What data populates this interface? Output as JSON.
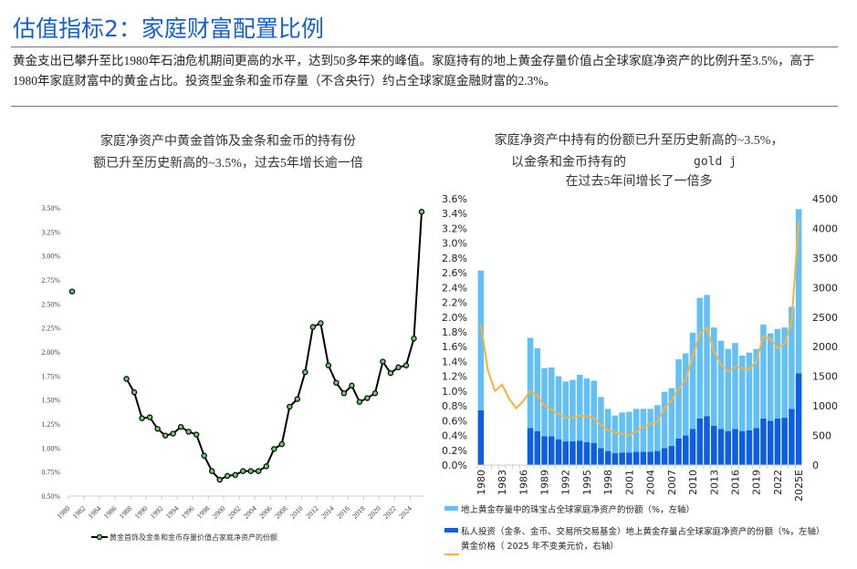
{
  "header": {
    "title": "估值指标2：家庭财富配置比例",
    "paragraph": "黄金支出已攀升至比1980年石油危机期间更高的水平，达到50多年来的峰值。家庭持有的地上黄金存量价值占全球家庭净资产的比例升至3.5%，高于1980年家庭财富中的黄金占比。投资型金条和金币存量（不含央行）约占全球家庭金融财富的2.3%。"
  },
  "chart_data": [
    {
      "type": "line",
      "title": "家庭净资产中黄金首饰及金条和金币的持有份额已升至历史新高的~3.5%，过去5年增长逾一倍",
      "title_lines": [
        "家庭净资产中黄金首饰及金条和金币的持有份",
        "额已升至历史新高的~3.5%，过去5年增长逾一倍"
      ],
      "x": [
        1980,
        1981,
        1982,
        1983,
        1984,
        1985,
        1986,
        1987,
        1988,
        1989,
        1990,
        1991,
        1992,
        1993,
        1994,
        1995,
        1996,
        1997,
        1998,
        1999,
        2000,
        2001,
        2002,
        2003,
        2004,
        2005,
        2006,
        2007,
        2008,
        2009,
        2010,
        2011,
        2012,
        2013,
        2014,
        2015,
        2016,
        2017,
        2018,
        2019,
        2020,
        2021,
        2022,
        2023,
        2024,
        2025
      ],
      "series": [
        {
          "name": "黄金首饰及金条和金币存量价值占家庭净资产的份额",
          "values": [
            2.63,
            null,
            null,
            null,
            null,
            null,
            null,
            1.72,
            1.58,
            1.31,
            1.32,
            1.2,
            1.13,
            1.15,
            1.22,
            1.17,
            1.14,
            0.92,
            0.76,
            0.67,
            0.71,
            0.72,
            0.76,
            0.76,
            0.76,
            0.81,
            0.99,
            1.04,
            1.43,
            1.51,
            1.79,
            2.26,
            2.3,
            1.86,
            1.68,
            1.57,
            1.65,
            1.48,
            1.52,
            1.57,
            1.9,
            1.78,
            1.84,
            1.86,
            2.14,
            3.46
          ]
        }
      ],
      "yticks": [
        "0.50%",
        "0.75%",
        "1.00%",
        "1.25%",
        "1.50%",
        "1.75%",
        "2.00%",
        "2.25%",
        "2.50%",
        "2.75%",
        "3.00%",
        "3.25%",
        "3.50%"
      ],
      "ylim": [
        0.5,
        3.5
      ],
      "xticks": [
        "1980",
        "1982",
        "1984",
        "1986",
        "1988",
        "1990",
        "1992",
        "1994",
        "1996",
        "1998",
        "2000",
        "2002",
        "2004",
        "2006",
        "2008",
        "2010",
        "2012",
        "2014",
        "2016",
        "2018",
        "2020",
        "2022",
        "2024"
      ],
      "legend": "bottom"
    },
    {
      "type": "bar",
      "title": "家庭净资产中持有的份额已升至历史新高的~3.5%，在过去5年间增长了一倍多",
      "title_lines": [
        "家庭净资产中持有的份额已升至历史新高的~3.5%，",
        "在过去5年间增长了一倍多"
      ],
      "overlay_text": [
        "以金条和金币持有的",
        "gold j"
      ],
      "categories": [
        "1980",
        "1981",
        "1982",
        "1983",
        "1984",
        "1985",
        "1986",
        "1987",
        "1988",
        "1989",
        "1990",
        "1991",
        "1992",
        "1993",
        "1994",
        "1995",
        "1996",
        "1997",
        "1998",
        "1999",
        "2000",
        "2001",
        "2002",
        "2003",
        "2004",
        "2005",
        "2006",
        "2007",
        "2008",
        "2009",
        "2010",
        "2011",
        "2012",
        "2013",
        "2014",
        "2015",
        "2016",
        "2017",
        "2018",
        "2019",
        "2020",
        "2021",
        "2022",
        "2023",
        "2024",
        "2025E"
      ],
      "series": [
        {
          "name": "地上黄金存量中的珠宝占全球家庭净资产的份额（%，左轴）",
          "color": "#63c0f7",
          "values": [
            1.89,
            null,
            null,
            null,
            null,
            null,
            null,
            1.22,
            1.12,
            0.92,
            0.93,
            0.85,
            0.81,
            0.83,
            0.89,
            0.86,
            0.84,
            0.69,
            0.57,
            0.51,
            0.54,
            0.55,
            0.58,
            0.58,
            0.58,
            0.62,
            0.76,
            0.78,
            1.07,
            1.11,
            1.3,
            1.63,
            1.64,
            1.33,
            1.19,
            1.11,
            1.16,
            1.02,
            1.05,
            1.07,
            1.27,
            1.18,
            1.21,
            1.22,
            1.38,
            2.22
          ]
        },
        {
          "name": "私人投资（金条、金币、交易所交易基金）地上黄金存量占全球家庭净资产的份额（%，左轴）",
          "color": "#0d5ee0",
          "values": [
            0.74,
            null,
            null,
            null,
            null,
            null,
            null,
            0.5,
            0.46,
            0.39,
            0.39,
            0.35,
            0.32,
            0.32,
            0.33,
            0.31,
            0.3,
            0.23,
            0.19,
            0.16,
            0.17,
            0.17,
            0.18,
            0.18,
            0.18,
            0.19,
            0.23,
            0.26,
            0.36,
            0.4,
            0.49,
            0.63,
            0.66,
            0.53,
            0.49,
            0.46,
            0.49,
            0.46,
            0.47,
            0.5,
            0.63,
            0.6,
            0.63,
            0.64,
            0.76,
            1.24
          ]
        },
        {
          "name": "黄金价格（ 2025 年不变美元价，右轴）",
          "color": "#f7b23b",
          "axis": "right",
          "values": [
            2380,
            1600,
            1250,
            1360,
            1120,
            960,
            1080,
            1250,
            1180,
            1000,
            940,
            860,
            800,
            800,
            840,
            820,
            800,
            680,
            590,
            550,
            530,
            500,
            570,
            640,
            700,
            730,
            960,
            1090,
            1300,
            1440,
            1840,
            2230,
            2320,
            1930,
            1700,
            1580,
            1660,
            1640,
            1620,
            1750,
            2180,
            2130,
            1980,
            2040,
            2430,
            4120
          ]
        }
      ],
      "yticks_left": [
        "0.0%",
        "0.2%",
        "0.4%",
        "0.6%",
        "0.8%",
        "1.0%",
        "1.2%",
        "1.4%",
        "1.6%",
        "1.8%",
        "2.0%",
        "2.2%",
        "2.4%",
        "2.6%",
        "2.8%",
        "3.0%",
        "3.2%",
        "3.4%",
        "3.6%"
      ],
      "ylim_left": [
        0,
        3.6
      ],
      "yticks_right": [
        "0",
        "500",
        "1000",
        "1500",
        "2000",
        "2500",
        "3000",
        "3500",
        "4000",
        "4500"
      ],
      "ylim_right": [
        0,
        4500
      ],
      "xticks": [
        "1980",
        "1983",
        "1986",
        "1989",
        "1992",
        "1995",
        "1998",
        "2001",
        "2004",
        "2007",
        "2010",
        "2013",
        "2016",
        "2019",
        "2022",
        "2025E"
      ],
      "legend": "bottom"
    }
  ]
}
